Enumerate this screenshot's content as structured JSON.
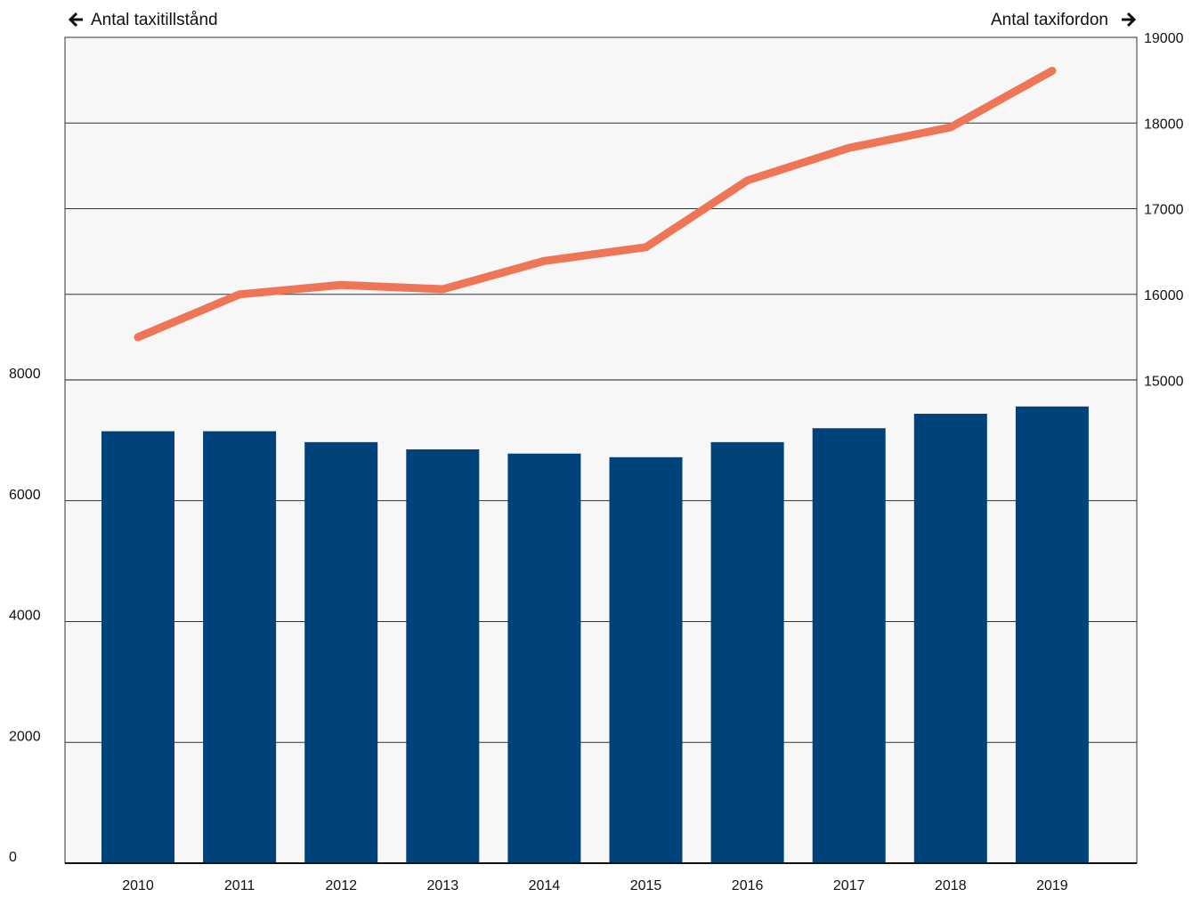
{
  "chart_data": {
    "type": "bar_line",
    "y_label": "Antal taxitillstånd",
    "y2_label": "Antal taxifordon",
    "categories": [
      "2010",
      "2011",
      "2012",
      "2013",
      "2014",
      "2015",
      "2016",
      "2017",
      "2018",
      "2019"
    ],
    "series": [
      {
        "name": "Antal taxitillstånd",
        "type": "bar",
        "color": "#00427a",
        "values": [
          7150,
          7150,
          6970,
          6850,
          6780,
          6720,
          6970,
          7200,
          7440,
          7560
        ]
      },
      {
        "name": "Antal taxifordon",
        "type": "line",
        "axis": "y2",
        "color": "#ee7656",
        "values": [
          15500,
          16000,
          16110,
          16060,
          16390,
          16550,
          17330,
          17710,
          17950,
          18610
        ]
      }
    ],
    "ylim": [
      0,
      13670
    ],
    "yticks": [
      0,
      2000,
      4000,
      6000,
      8000
    ],
    "y2lim": [
      9360,
      19000
    ],
    "y2ticks": [
      15000,
      16000,
      17000,
      18000,
      19000
    ],
    "grid": true
  }
}
